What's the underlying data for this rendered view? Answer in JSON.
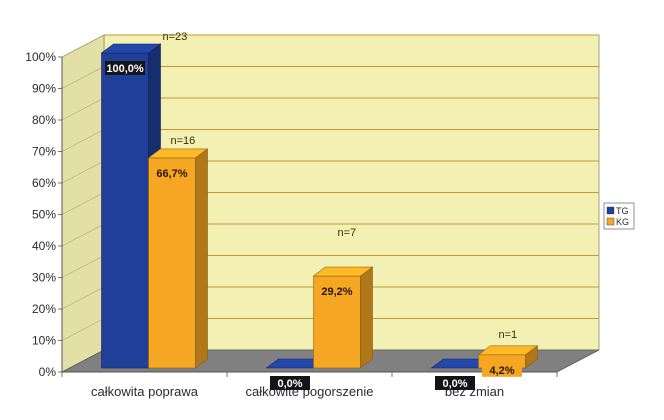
{
  "chart_data": {
    "type": "bar",
    "categories": [
      "całkowita poprawa",
      "całkowite pogorszenie",
      "bez zmian"
    ],
    "series": [
      {
        "name": "TG",
        "values": [
          100.0,
          0.0,
          0.0
        ],
        "labels": [
          "100,0%",
          "0,0%",
          "0,0%"
        ],
        "n_labels": [
          "n=23",
          "",
          ""
        ],
        "color": "#1f3f99"
      },
      {
        "name": "KG",
        "values": [
          66.7,
          29.2,
          4.2
        ],
        "labels": [
          "66,7%",
          "29,2%",
          "4,2%"
        ],
        "n_labels": [
          "n=16",
          "n=7",
          "n=1"
        ],
        "color": "#f5a623"
      }
    ],
    "yticks": [
      "0%",
      "10%",
      "20%",
      "30%",
      "40%",
      "50%",
      "60%",
      "70%",
      "80%",
      "90%",
      "100%"
    ],
    "ylim": [
      0,
      100
    ],
    "grid": true,
    "legend_position": "right",
    "wall_color": "#f3f0b4",
    "floor_color": "#808080",
    "title": "",
    "xlabel": "",
    "ylabel": ""
  }
}
